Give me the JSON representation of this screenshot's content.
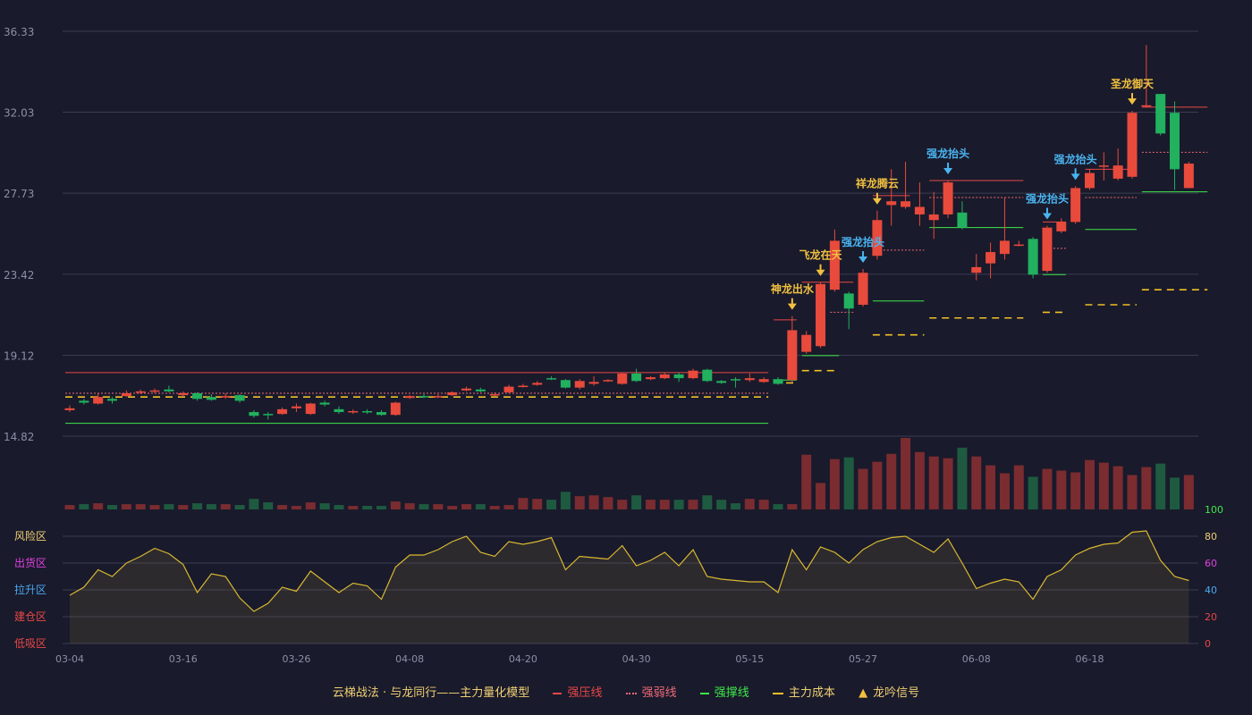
{
  "chart_data": {
    "type": "candlestick",
    "title": "",
    "price_axis": {
      "ticks": [
        "36.33",
        "32.03",
        "27.73",
        "23.42",
        "19.12",
        "14.82"
      ],
      "ylim": [
        14.82,
        36.33
      ]
    },
    "osc_axis": {
      "ticks": [
        "100",
        "80",
        "60",
        "40",
        "20",
        "0"
      ],
      "ylim": [
        0,
        100
      ]
    },
    "zones": [
      {
        "label": "风险区",
        "color": "#f0d074"
      },
      {
        "label": "出货区",
        "color": "#e040e0"
      },
      {
        "label": "拉升区",
        "color": "#4aa8f0"
      },
      {
        "label": "建仓区",
        "color": "#e84848"
      },
      {
        "label": "低吸区",
        "color": "#e84848"
      }
    ],
    "x_ticks": [
      "03-04",
      "03-16",
      "03-26",
      "04-08",
      "04-20",
      "04-30",
      "05-15",
      "05-27",
      "06-08",
      "06-18"
    ],
    "candles": [
      [
        16.2,
        16.3,
        16.1,
        16.45
      ],
      [
        16.7,
        16.6,
        16.5,
        16.8
      ],
      [
        16.55,
        16.9,
        16.5,
        17.1
      ],
      [
        16.8,
        16.7,
        16.55,
        16.9
      ],
      [
        16.95,
        17.1,
        16.9,
        17.25
      ],
      [
        17.15,
        17.2,
        17.05,
        17.3
      ],
      [
        17.2,
        17.25,
        17.1,
        17.35
      ],
      [
        17.3,
        17.2,
        17.15,
        17.5
      ],
      [
        17.0,
        17.1,
        16.95,
        17.2
      ],
      [
        17.1,
        16.8,
        16.7,
        17.15
      ],
      [
        16.9,
        16.75,
        16.7,
        17.05
      ],
      [
        16.9,
        16.95,
        16.8,
        17.1
      ],
      [
        17.0,
        16.7,
        16.6,
        17.05
      ],
      [
        16.1,
        15.9,
        15.8,
        16.2
      ],
      [
        16.0,
        15.95,
        15.7,
        16.1
      ],
      [
        16.0,
        16.25,
        15.95,
        16.35
      ],
      [
        16.3,
        16.4,
        16.1,
        16.55
      ],
      [
        16.0,
        16.55,
        15.95,
        16.6
      ],
      [
        16.6,
        16.5,
        16.4,
        16.7
      ],
      [
        16.25,
        16.1,
        16.0,
        16.4
      ],
      [
        16.1,
        16.15,
        16.0,
        16.25
      ],
      [
        16.15,
        16.1,
        16.0,
        16.25
      ],
      [
        16.1,
        15.95,
        15.9,
        16.2
      ],
      [
        15.95,
        16.6,
        15.9,
        16.65
      ],
      [
        16.85,
        16.95,
        16.8,
        17.0
      ],
      [
        16.95,
        16.9,
        16.85,
        17.05
      ],
      [
        16.9,
        16.95,
        16.85,
        17.05
      ],
      [
        17.0,
        17.15,
        16.95,
        17.2
      ],
      [
        17.25,
        17.35,
        17.2,
        17.45
      ],
      [
        17.3,
        17.2,
        17.15,
        17.4
      ],
      [
        17.0,
        17.05,
        16.95,
        17.15
      ],
      [
        17.15,
        17.45,
        17.1,
        17.55
      ],
      [
        17.45,
        17.5,
        17.4,
        17.6
      ],
      [
        17.55,
        17.65,
        17.5,
        17.75
      ],
      [
        17.9,
        17.85,
        17.8,
        18.0
      ],
      [
        17.8,
        17.4,
        17.35,
        17.85
      ],
      [
        17.4,
        17.75,
        17.3,
        17.85
      ],
      [
        17.6,
        17.7,
        17.5,
        18.0
      ],
      [
        17.75,
        17.8,
        17.7,
        17.85
      ],
      [
        17.6,
        18.15,
        17.55,
        18.2
      ],
      [
        18.15,
        17.75,
        17.7,
        18.4
      ],
      [
        17.85,
        17.95,
        17.8,
        18.0
      ],
      [
        17.9,
        18.1,
        17.85,
        18.2
      ],
      [
        18.1,
        17.9,
        17.7,
        18.2
      ],
      [
        17.9,
        18.3,
        17.85,
        18.4
      ],
      [
        18.35,
        17.75,
        17.7,
        18.4
      ],
      [
        17.75,
        17.65,
        17.6,
        17.8
      ],
      [
        17.85,
        17.8,
        17.4,
        17.95
      ],
      [
        17.8,
        17.9,
        17.7,
        18.15
      ],
      [
        17.7,
        17.85,
        17.65,
        17.95
      ],
      [
        17.85,
        17.6,
        17.55,
        17.95
      ],
      [
        17.8,
        20.45,
        17.7,
        21.2
      ],
      [
        19.3,
        20.2,
        19.2,
        20.4
      ],
      [
        19.6,
        22.9,
        19.5,
        23.0
      ],
      [
        22.6,
        25.2,
        22.5,
        25.8
      ],
      [
        22.4,
        21.6,
        20.5,
        22.5
      ],
      [
        21.8,
        23.5,
        21.7,
        23.7
      ],
      [
        24.4,
        26.3,
        24.2,
        26.8
      ],
      [
        27.1,
        27.3,
        26.0,
        29.0
      ],
      [
        27.0,
        27.3,
        26.9,
        29.4
      ],
      [
        26.6,
        27.0,
        26.0,
        28.3
      ],
      [
        26.3,
        26.6,
        25.3,
        27.8
      ],
      [
        26.6,
        28.3,
        26.4,
        28.4
      ],
      [
        26.7,
        25.9,
        25.8,
        27.3
      ],
      [
        23.5,
        23.8,
        23.1,
        24.5
      ],
      [
        24.0,
        24.6,
        23.2,
        25.1
      ],
      [
        24.5,
        25.2,
        24.2,
        27.5
      ],
      [
        25.0,
        25.0,
        24.9,
        25.2
      ],
      [
        25.3,
        23.4,
        23.2,
        25.4
      ],
      [
        23.6,
        25.9,
        23.5,
        26.0
      ],
      [
        25.7,
        26.2,
        25.6,
        26.4
      ],
      [
        26.2,
        28.0,
        26.1,
        28.1
      ],
      [
        28.0,
        28.8,
        27.9,
        29.0
      ],
      [
        29.2,
        29.2,
        28.4,
        29.9
      ],
      [
        28.5,
        29.2,
        28.4,
        30.1
      ],
      [
        28.6,
        32.0,
        28.5,
        32.1
      ],
      [
        32.4,
        32.4,
        32.3,
        35.6
      ],
      [
        33.0,
        30.9,
        30.8,
        33.0
      ],
      [
        32.0,
        29.0,
        27.9,
        32.6
      ],
      [
        28.0,
        29.3,
        28.0,
        29.4
      ]
    ],
    "volume": [
      5,
      6,
      7,
      5,
      6,
      6,
      5,
      6,
      5,
      7,
      6,
      6,
      5,
      12,
      8,
      5,
      4,
      8,
      7,
      5,
      4,
      4,
      4,
      9,
      7,
      6,
      6,
      4,
      6,
      6,
      4,
      5,
      13,
      12,
      11,
      20,
      15,
      16,
      14,
      11,
      16,
      11,
      11,
      11,
      11,
      16,
      11,
      7,
      12,
      11,
      6,
      6,
      62,
      30,
      57,
      59,
      46,
      54,
      63,
      81,
      65,
      60,
      58,
      70,
      60,
      50,
      41,
      50,
      37,
      46,
      44,
      42,
      56,
      53,
      49,
      39,
      48,
      52,
      36,
      39
    ],
    "oscillator": [
      36,
      42,
      55,
      50,
      60,
      65,
      71,
      67,
      59,
      38,
      52,
      50,
      34,
      24,
      30,
      42,
      39,
      54,
      46,
      38,
      45,
      43,
      33,
      57,
      66,
      66,
      70,
      76,
      80,
      68,
      65,
      76,
      74,
      76,
      79,
      55,
      65,
      64,
      63,
      73,
      58,
      62,
      68,
      58,
      70,
      50,
      48,
      47,
      46,
      46,
      38,
      70,
      55,
      72,
      68,
      60,
      70,
      76,
      79,
      80,
      74,
      68,
      78,
      60,
      41,
      45,
      48,
      46,
      33,
      50,
      55,
      66,
      71,
      74,
      75,
      83,
      84,
      62,
      50,
      47
    ],
    "strong_pressure_lines": [
      {
        "from": 0,
        "to": 49,
        "value": 18.2
      },
      {
        "from": 50,
        "to": 51,
        "value": 21.0
      },
      {
        "from": 52,
        "to": 55,
        "value": 23.0
      },
      {
        "from": 57,
        "to": 59,
        "value": 27.6
      },
      {
        "from": 61,
        "to": 67,
        "value": 28.4
      },
      {
        "from": 69,
        "to": 70,
        "value": 26.2
      },
      {
        "from": 72,
        "to": 75,
        "value": 29.0
      },
      {
        "from": 76,
        "to": 80,
        "value": 32.3
      }
    ],
    "weak_lines": [
      {
        "from": 0,
        "to": 49,
        "value": 17.1
      },
      {
        "from": 54,
        "to": 55,
        "value": 21.4
      },
      {
        "from": 57,
        "to": 60,
        "value": 24.7
      },
      {
        "from": 61,
        "to": 67,
        "value": 27.5
      },
      {
        "from": 69,
        "to": 70,
        "value": 24.8
      },
      {
        "from": 72,
        "to": 75,
        "value": 27.5
      },
      {
        "from": 76,
        "to": 80,
        "value": 29.9
      }
    ],
    "support_lines": [
      {
        "from": 0,
        "to": 49,
        "value": 15.5
      },
      {
        "from": 50,
        "to": 51,
        "value": 17.8
      },
      {
        "from": 52,
        "to": 54,
        "value": 19.1
      },
      {
        "from": 57,
        "to": 60,
        "value": 22.0
      },
      {
        "from": 61,
        "to": 67,
        "value": 25.9
      },
      {
        "from": 69,
        "to": 70,
        "value": 23.4
      },
      {
        "from": 72,
        "to": 75,
        "value": 25.8
      },
      {
        "from": 76,
        "to": 80,
        "value": 27.8
      }
    ],
    "cost_lines": [
      {
        "from": 0,
        "to": 49,
        "value": 16.9
      },
      {
        "from": 50,
        "to": 51,
        "value": 17.65
      },
      {
        "from": 52,
        "to": 54,
        "value": 18.3
      },
      {
        "from": 57,
        "to": 60,
        "value": 20.2
      },
      {
        "from": 61,
        "to": 67,
        "value": 21.1
      },
      {
        "from": 69,
        "to": 70,
        "value": 21.4
      },
      {
        "from": 72,
        "to": 75,
        "value": 21.8
      },
      {
        "from": 76,
        "to": 80,
        "value": 22.6
      }
    ],
    "signals": [
      {
        "index": 51,
        "label": "神龙出水",
        "color": "#f0c040"
      },
      {
        "index": 53,
        "label": "飞龙在天",
        "color": "#f0c040"
      },
      {
        "index": 56,
        "label": "强龙抬头",
        "color": "#4ab4f0"
      },
      {
        "index": 57,
        "label": "祥龙腾云",
        "color": "#f0c040"
      },
      {
        "index": 62,
        "label": "强龙抬头",
        "color": "#4ab4f0"
      },
      {
        "index": 69,
        "label": "强龙抬头",
        "color": "#4ab4f0"
      },
      {
        "index": 71,
        "label": "强龙抬头",
        "color": "#4ab4f0"
      },
      {
        "index": 75,
        "label": "圣龙御天",
        "color": "#f0c040"
      }
    ],
    "colors": {
      "up": "#e84a3c",
      "down": "#21b15f",
      "pressure": "#e84848",
      "weak": "#f06a7a",
      "support": "#3ee84a",
      "cost": "#f0c028",
      "osc": "#d8b830"
    }
  },
  "legend": {
    "title": "云梯战法 · 与龙同行——主力量化模型",
    "items": [
      {
        "label": "强压线",
        "color": "#e84848",
        "style": "solid"
      },
      {
        "label": "强弱线",
        "color": "#f06a7a",
        "style": "dotted"
      },
      {
        "label": "强撑线",
        "color": "#3ee84a",
        "style": "solid"
      },
      {
        "label": "主力成本",
        "color": "#f0c028",
        "style": "dashed"
      },
      {
        "label": "龙吟信号",
        "color": "#f0c040",
        "style": "triangle"
      }
    ],
    "signal_glyph": "▲"
  }
}
